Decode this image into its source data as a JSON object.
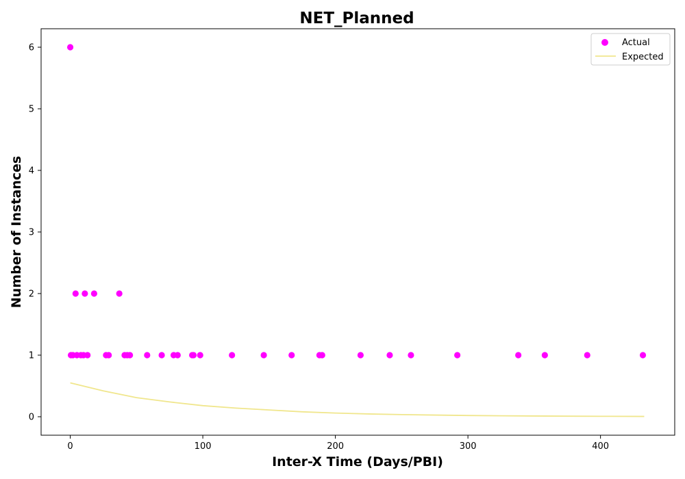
{
  "chart_data": {
    "type": "scatter",
    "title": "NET_Planned",
    "xlabel": "Inter-X Time (Days/PBI)",
    "ylabel": "Number of Instances",
    "xlim": [
      -22,
      456
    ],
    "ylim": [
      -0.3,
      6.3
    ],
    "xticks": [
      0,
      100,
      200,
      300,
      400
    ],
    "yticks": [
      0,
      1,
      2,
      3,
      4,
      5,
      6
    ],
    "grid": false,
    "legend_position": "top-right",
    "series": [
      {
        "name": "Actual",
        "kind": "scatter",
        "color": "#ff00ff",
        "points": [
          [
            0,
            6
          ],
          [
            0.5,
            1
          ],
          [
            2,
            1
          ],
          [
            4,
            2
          ],
          [
            5,
            1
          ],
          [
            8,
            1
          ],
          [
            10,
            1
          ],
          [
            11,
            2
          ],
          [
            13,
            1
          ],
          [
            18,
            2
          ],
          [
            27,
            1
          ],
          [
            29,
            1
          ],
          [
            37,
            2
          ],
          [
            41,
            1
          ],
          [
            43,
            1
          ],
          [
            45,
            1
          ],
          [
            58,
            1
          ],
          [
            69,
            1
          ],
          [
            78,
            1
          ],
          [
            81,
            1
          ],
          [
            92,
            1
          ],
          [
            93,
            1
          ],
          [
            98,
            1
          ],
          [
            122,
            1
          ],
          [
            146,
            1
          ],
          [
            167,
            1
          ],
          [
            188,
            1
          ],
          [
            190,
            1
          ],
          [
            219,
            1
          ],
          [
            241,
            1
          ],
          [
            257,
            1
          ],
          [
            292,
            1
          ],
          [
            338,
            1
          ],
          [
            358,
            1
          ],
          [
            390,
            1
          ],
          [
            432,
            1
          ]
        ]
      },
      {
        "name": "Expected",
        "kind": "line",
        "color": "#f0e68c",
        "x": [
          0,
          25,
          50,
          75,
          100,
          125,
          150,
          175,
          200,
          225,
          250,
          275,
          300,
          325,
          350,
          375,
          400,
          433
        ],
        "y": [
          0.55,
          0.42,
          0.31,
          0.24,
          0.18,
          0.14,
          0.11,
          0.08,
          0.06,
          0.045,
          0.035,
          0.027,
          0.02,
          0.015,
          0.012,
          0.009,
          0.007,
          0.005
        ]
      }
    ]
  }
}
